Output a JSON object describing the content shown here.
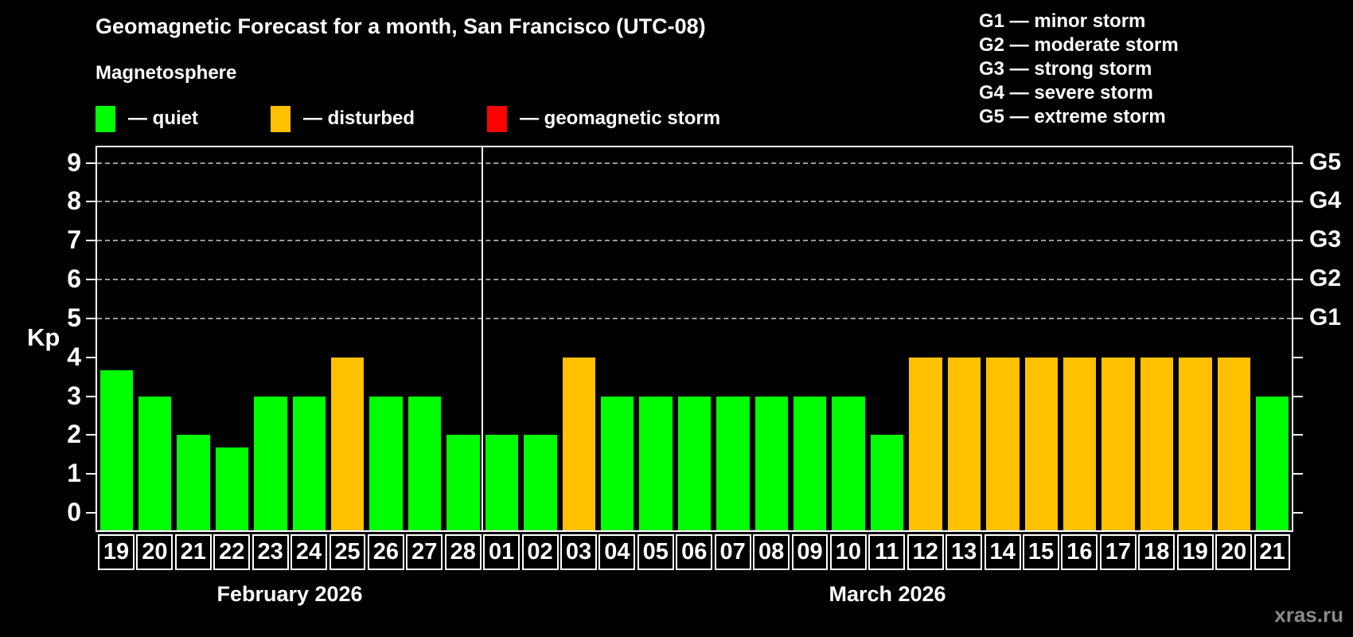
{
  "title": "Geomagnetic Forecast for a month, San Francisco (UTC-08)",
  "subtitle": "Magnetosphere",
  "status_legend": [
    {
      "id": "quiet",
      "label": "— quiet",
      "color": "#00ff00"
    },
    {
      "id": "disturbed",
      "label": "— disturbed",
      "color": "#ffc000"
    },
    {
      "id": "storm",
      "label": "— geomagnetic storm",
      "color": "#ff0000"
    }
  ],
  "g_scale_legend": [
    "G1 — minor storm",
    "G2 — moderate storm",
    "G3 — strong storm",
    "G4 — severe storm",
    "G5 — extreme storm"
  ],
  "watermark": "xras.ru",
  "colors": {
    "background": "#000000",
    "axis": "#ffffff",
    "grid": "#999999",
    "quiet": "#00ff00",
    "disturbed": "#ffc000",
    "storm": "#ff0000",
    "watermark": "#8a8a8a"
  },
  "chart_data": {
    "type": "bar",
    "title": "Geomagnetic Forecast for a month, San Francisco (UTC-08)",
    "ylabel": "Kp",
    "ylim": [
      -0.45,
      9.4
    ],
    "yticks": [
      0,
      1,
      2,
      3,
      4,
      5,
      6,
      7,
      8,
      9
    ],
    "gridlines_kp": [
      5,
      6,
      7,
      8,
      9
    ],
    "right_axis": {
      "labels": [
        "G1",
        "G2",
        "G3",
        "G4",
        "G5"
      ],
      "at_kp": [
        5,
        6,
        7,
        8,
        9
      ]
    },
    "legend_position": "top",
    "months": [
      {
        "label": "February 2026",
        "days": 10
      },
      {
        "label": "March 2026",
        "days": 21
      }
    ],
    "bars": [
      {
        "month": "February 2026",
        "day": "19",
        "kp": 3.67,
        "state": "quiet"
      },
      {
        "month": "February 2026",
        "day": "20",
        "kp": 3,
        "state": "quiet"
      },
      {
        "month": "February 2026",
        "day": "21",
        "kp": 2,
        "state": "quiet"
      },
      {
        "month": "February 2026",
        "day": "22",
        "kp": 1.67,
        "state": "quiet"
      },
      {
        "month": "February 2026",
        "day": "23",
        "kp": 3,
        "state": "quiet"
      },
      {
        "month": "February 2026",
        "day": "24",
        "kp": 3,
        "state": "quiet"
      },
      {
        "month": "February 2026",
        "day": "25",
        "kp": 4,
        "state": "disturbed"
      },
      {
        "month": "February 2026",
        "day": "26",
        "kp": 3,
        "state": "quiet"
      },
      {
        "month": "February 2026",
        "day": "27",
        "kp": 3,
        "state": "quiet"
      },
      {
        "month": "February 2026",
        "day": "28",
        "kp": 2,
        "state": "quiet"
      },
      {
        "month": "March 2026",
        "day": "01",
        "kp": 2,
        "state": "quiet"
      },
      {
        "month": "March 2026",
        "day": "02",
        "kp": 2,
        "state": "quiet"
      },
      {
        "month": "March 2026",
        "day": "03",
        "kp": 4,
        "state": "disturbed"
      },
      {
        "month": "March 2026",
        "day": "04",
        "kp": 3,
        "state": "quiet"
      },
      {
        "month": "March 2026",
        "day": "05",
        "kp": 3,
        "state": "quiet"
      },
      {
        "month": "March 2026",
        "day": "06",
        "kp": 3,
        "state": "quiet"
      },
      {
        "month": "March 2026",
        "day": "07",
        "kp": 3,
        "state": "quiet"
      },
      {
        "month": "March 2026",
        "day": "08",
        "kp": 3,
        "state": "quiet"
      },
      {
        "month": "March 2026",
        "day": "09",
        "kp": 3,
        "state": "quiet"
      },
      {
        "month": "March 2026",
        "day": "10",
        "kp": 3,
        "state": "quiet"
      },
      {
        "month": "March 2026",
        "day": "11",
        "kp": 2,
        "state": "quiet"
      },
      {
        "month": "March 2026",
        "day": "12",
        "kp": 4,
        "state": "disturbed"
      },
      {
        "month": "March 2026",
        "day": "13",
        "kp": 4,
        "state": "disturbed"
      },
      {
        "month": "March 2026",
        "day": "14",
        "kp": 4,
        "state": "disturbed"
      },
      {
        "month": "March 2026",
        "day": "15",
        "kp": 4,
        "state": "disturbed"
      },
      {
        "month": "March 2026",
        "day": "16",
        "kp": 4,
        "state": "disturbed"
      },
      {
        "month": "March 2026",
        "day": "17",
        "kp": 4,
        "state": "disturbed"
      },
      {
        "month": "March 2026",
        "day": "18",
        "kp": 4,
        "state": "disturbed"
      },
      {
        "month": "March 2026",
        "day": "19",
        "kp": 4,
        "state": "disturbed"
      },
      {
        "month": "March 2026",
        "day": "20",
        "kp": 4,
        "state": "disturbed"
      },
      {
        "month": "March 2026",
        "day": "21",
        "kp": 3,
        "state": "quiet"
      }
    ]
  }
}
